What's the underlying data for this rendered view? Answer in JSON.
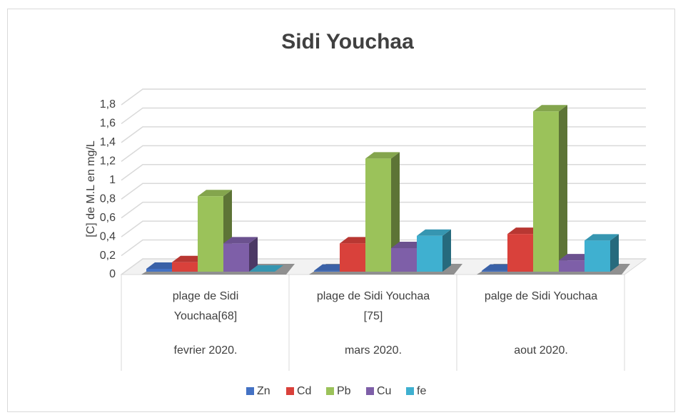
{
  "chart_data": {
    "type": "bar3d",
    "title": "Sidi Youchaa",
    "y_label": "[C] de M.L en mg/L",
    "categories": [
      "plage de Sidi Youchaa[68]",
      "plage de Sidi Youchaa [75]",
      "palge de Sidi Youchaa"
    ],
    "category_groups": [
      "fevrier 2020.",
      "mars 2020.",
      "aout 2020."
    ],
    "series": [
      {
        "name": "Zn",
        "color": "#4472c4",
        "values": [
          0.03,
          0.01,
          0.01
        ]
      },
      {
        "name": "Cd",
        "color": "#d9413b",
        "values": [
          0.1,
          0.3,
          0.4
        ]
      },
      {
        "name": "Pb",
        "color": "#9bc25a",
        "values": [
          0.8,
          1.2,
          1.7
        ]
      },
      {
        "name": "Cu",
        "color": "#7e5fa8",
        "values": [
          0.3,
          0.25,
          0.12
        ]
      },
      {
        "name": "fe",
        "color": "#3fb0d0",
        "values": [
          0,
          0.38,
          0.33
        ]
      }
    ],
    "ylim": [
      0,
      1.8
    ],
    "yticks": [
      0,
      {
        "value": 0.2,
        "label": "0,2"
      },
      {
        "value": 0.4,
        "label": "0,4"
      },
      {
        "value": 0.6,
        "label": "0,6"
      },
      {
        "value": 0.8,
        "label": "0,8"
      },
      1,
      {
        "value": 1.2,
        "label": "1,2"
      },
      {
        "value": 1.4,
        "label": "1,4"
      },
      {
        "value": 1.6,
        "label": "1,6"
      },
      {
        "value": 1.8,
        "label": "1,8"
      }
    ],
    "grid": true
  }
}
